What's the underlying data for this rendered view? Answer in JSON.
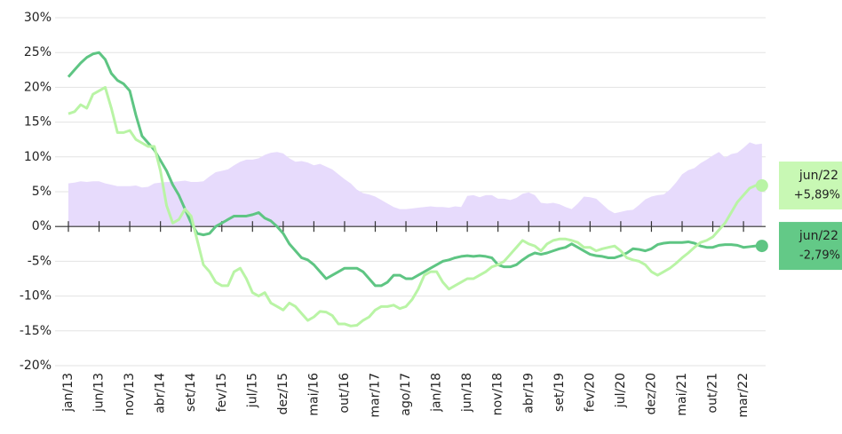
{
  "chart_data": {
    "type": "line",
    "categories": [
      "jan/13",
      null,
      null,
      null,
      null,
      "jun/13",
      null,
      null,
      null,
      null,
      "nov/13",
      null,
      null,
      null,
      null,
      "abr/14",
      null,
      null,
      null,
      null,
      "set/14",
      null,
      null,
      null,
      null,
      "fev/15",
      null,
      null,
      null,
      null,
      "jul/15",
      null,
      null,
      null,
      null,
      "dez/15",
      null,
      null,
      null,
      null,
      "mai/16",
      null,
      null,
      null,
      null,
      "out/16",
      null,
      null,
      null,
      null,
      "mar/17",
      null,
      null,
      null,
      null,
      "ago/17",
      null,
      null,
      null,
      null,
      "jan/18",
      null,
      null,
      null,
      null,
      "jun/18",
      null,
      null,
      null,
      null,
      "nov/18",
      null,
      null,
      null,
      null,
      "abr/19",
      null,
      null,
      null,
      null,
      "set/19",
      null,
      null,
      null,
      null,
      "fev/20",
      null,
      null,
      null,
      null,
      "jul/20",
      null,
      null,
      null,
      null,
      "dez/20",
      null,
      null,
      null,
      null,
      "mai/21",
      null,
      null,
      null,
      null,
      "out/21",
      null,
      null,
      null,
      null,
      "mar/22",
      null,
      null,
      null
    ],
    "series": [
      {
        "type": "area",
        "color": "#e7dbfc",
        "values": [
          6.2,
          6.3,
          6.5,
          6.4,
          6.5,
          6.5,
          6.2,
          6,
          5.8,
          5.8,
          5.8,
          5.9,
          5.6,
          5.7,
          6.2,
          6.3,
          6.4,
          6.4,
          6.5,
          6.6,
          6.4,
          6.4,
          6.5,
          7.2,
          7.8,
          8,
          8.2,
          8.8,
          9.3,
          9.6,
          9.6,
          9.8,
          10.3,
          10.6,
          10.7,
          10.5,
          9.8,
          9.3,
          9.4,
          9.2,
          8.8,
          9,
          8.6,
          8.2,
          7.5,
          6.8,
          6.2,
          5.3,
          4.8,
          4.6,
          4.3,
          3.8,
          3.3,
          2.8,
          2.5,
          2.5,
          2.6,
          2.7,
          2.8,
          2.9,
          2.8,
          2.8,
          2.7,
          2.9,
          2.8,
          4.4,
          4.5,
          4.2,
          4.5,
          4.5,
          4,
          4,
          3.8,
          4.1,
          4.7,
          4.9,
          4.5,
          3.4,
          3.3,
          3.4,
          3.2,
          2.8,
          2.5,
          3.3,
          4.3,
          4.2,
          4,
          3.2,
          2.4,
          1.9,
          2.1,
          2.3,
          2.4,
          3.1,
          3.9,
          4.3,
          4.5,
          4.6,
          5.3,
          6.3,
          7.5,
          8.1,
          8.4,
          9.1,
          9.6,
          10.2,
          10.7,
          9.9,
          10.4,
          10.6,
          11.3,
          12.1,
          11.8,
          11.9
        ]
      },
      {
        "type": "line",
        "color": "#5ec583",
        "label_color": "#63c987",
        "end_date": "jun/22",
        "end_value_label": "-2,79%",
        "values": [
          21.5,
          22.5,
          23.5,
          24.3,
          24.8,
          25,
          24,
          22,
          21,
          20.5,
          19.5,
          16,
          13,
          12,
          11,
          9.5,
          8,
          6,
          4.5,
          2.5,
          0.5,
          -1,
          -1.2,
          -1,
          0,
          0.5,
          1,
          1.5,
          1.5,
          1.5,
          1.7,
          2,
          1.2,
          0.8,
          0,
          -1,
          -2.5,
          -3.5,
          -4.5,
          -4.8,
          -5.5,
          -6.5,
          -7.5,
          -7,
          -6.5,
          -6,
          -6,
          -6,
          -6.5,
          -7.5,
          -8.5,
          -8.5,
          -8,
          -7,
          -7,
          -7.5,
          -7.5,
          -7,
          -6.5,
          -6,
          -5.5,
          -5,
          -4.8,
          -4.5,
          -4.3,
          -4.2,
          -4.3,
          -4.2,
          -4.3,
          -4.5,
          -5.5,
          -5.8,
          -5.8,
          -5.5,
          -4.8,
          -4.2,
          -3.8,
          -4,
          -3.8,
          -3.5,
          -3.2,
          -3,
          -2.5,
          -3,
          -3.5,
          -4,
          -4.2,
          -4.3,
          -4.5,
          -4.5,
          -4.2,
          -3.8,
          -3.2,
          -3.3,
          -3.5,
          -3.2,
          -2.6,
          -2.4,
          -2.3,
          -2.3,
          -2.3,
          -2.2,
          -2.4,
          -2.8,
          -3,
          -3,
          -2.7,
          -2.6,
          -2.6,
          -2.7,
          -3,
          -2.9,
          -2.8,
          -2.79
        ]
      },
      {
        "type": "line",
        "color": "#b9f4a5",
        "label_color": "#c8f8b4",
        "end_date": "jun/22",
        "end_value_label": "+5,89%",
        "values": [
          16.2,
          16.5,
          17.5,
          17,
          19,
          19.5,
          20,
          17,
          13.5,
          13.5,
          13.8,
          12.5,
          12,
          11.5,
          11.5,
          8,
          3,
          0.5,
          1,
          2.5,
          1.5,
          -2,
          -5.5,
          -6.5,
          -8,
          -8.5,
          -8.5,
          -6.5,
          -6,
          -7.5,
          -9.5,
          -10,
          -9.5,
          -11,
          -11.5,
          -12,
          -11,
          -11.5,
          -12.5,
          -13.5,
          -13,
          -12.2,
          -12.3,
          -12.8,
          -14,
          -14,
          -14.3,
          -14.2,
          -13.5,
          -13,
          -12,
          -11.5,
          -11.5,
          -11.3,
          -11.8,
          -11.5,
          -10.5,
          -9,
          -7,
          -6.5,
          -6.5,
          -8,
          -9,
          -8.5,
          -8,
          -7.5,
          -7.5,
          -7,
          -6.5,
          -5.8,
          -5.5,
          -5,
          -4,
          -3,
          -2,
          -2.5,
          -2.8,
          -3.5,
          -2.5,
          -2,
          -1.8,
          -1.8,
          -2,
          -2.3,
          -3,
          -3,
          -3.5,
          -3.2,
          -3,
          -2.8,
          -3.5,
          -4.5,
          -4.8,
          -5,
          -5.5,
          -6.5,
          -7,
          -6.5,
          -6,
          -5.3,
          -4.5,
          -3.8,
          -3,
          -2.3,
          -2,
          -1.5,
          -0.5,
          0.5,
          2,
          3.5,
          4.5,
          5.5,
          5.9,
          5.89
        ]
      }
    ],
    "ylim": [
      -20,
      30
    ],
    "yticks": [
      {
        "value": -20,
        "label": "-20%"
      },
      {
        "value": -15,
        "label": "-15%"
      },
      {
        "value": -10,
        "label": "-10%"
      },
      {
        "value": -5,
        "label": "-5%"
      },
      {
        "value": 0,
        "label": "0%"
      },
      {
        "value": 5,
        "label": "5%"
      },
      {
        "value": 10,
        "label": "10%"
      },
      {
        "value": 15,
        "label": "15%"
      },
      {
        "value": 20,
        "label": "20%"
      },
      {
        "value": 25,
        "label": "25%"
      },
      {
        "value": 30,
        "label": "30%"
      }
    ],
    "grid": true
  }
}
